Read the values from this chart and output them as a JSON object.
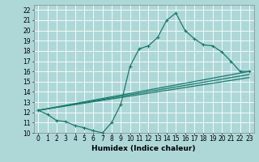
{
  "title": "",
  "xlabel": "Humidex (Indice chaleur)",
  "xlim": [
    -0.5,
    23.5
  ],
  "ylim": [
    10,
    22.5
  ],
  "xticks": [
    0,
    1,
    2,
    3,
    4,
    5,
    6,
    7,
    8,
    9,
    10,
    11,
    12,
    13,
    14,
    15,
    16,
    17,
    18,
    19,
    20,
    21,
    22,
    23
  ],
  "yticks": [
    10,
    11,
    12,
    13,
    14,
    15,
    16,
    17,
    18,
    19,
    20,
    21,
    22
  ],
  "bg_color": "#aed8d8",
  "grid_color": "#c8e8e8",
  "line_color": "#1a7a6e",
  "line1_x": [
    0,
    1,
    2,
    3,
    4,
    5,
    6,
    7,
    8,
    9,
    10,
    11,
    12,
    13,
    14,
    15,
    16,
    17,
    18,
    19,
    20,
    21,
    22,
    23
  ],
  "line1_y": [
    12.2,
    11.8,
    11.2,
    11.1,
    10.7,
    10.5,
    10.2,
    10.0,
    11.0,
    12.8,
    16.5,
    18.2,
    18.5,
    19.3,
    21.0,
    21.7,
    20.0,
    19.2,
    18.6,
    18.5,
    17.9,
    17.0,
    16.0,
    16.0
  ],
  "line2_x": [
    0,
    23
  ],
  "line2_y": [
    12.2,
    16.0
  ],
  "line3_x": [
    0,
    23
  ],
  "line3_y": [
    12.2,
    15.7
  ],
  "line4_x": [
    0,
    23
  ],
  "line4_y": [
    12.2,
    15.4
  ],
  "tick_fontsize": 5.5,
  "xlabel_fontsize": 6.5
}
